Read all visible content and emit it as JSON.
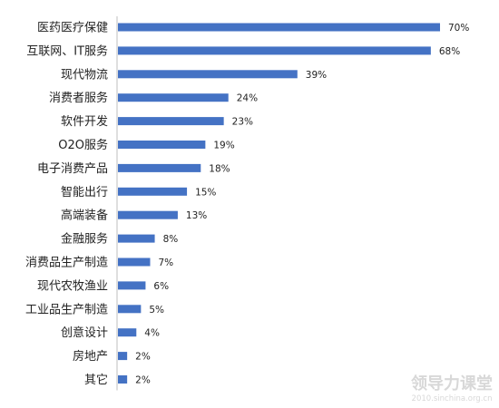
{
  "chart_data": {
    "type": "bar",
    "orientation": "horizontal",
    "categories": [
      "医药医疗保健",
      "互联网、IT服务",
      "现代物流",
      "消费者服务",
      "软件开发",
      "O2O服务",
      "电子消费产品",
      "智能出行",
      "高端装备",
      "金融服务",
      "消费品生产制造",
      "现代农牧渔业",
      "工业品生产制造",
      "创意设计",
      "房地产",
      "其它"
    ],
    "values": [
      70,
      68,
      39,
      24,
      23,
      19,
      18,
      15,
      13,
      8,
      7,
      6,
      5,
      4,
      2,
      2
    ],
    "value_labels": [
      "70%",
      "68%",
      "39%",
      "24%",
      "23%",
      "19%",
      "18%",
      "15%",
      "13%",
      "8%",
      "7%",
      "6%",
      "5%",
      "4%",
      "2%",
      "2%"
    ],
    "unit": "%",
    "xlim": [
      0,
      80
    ],
    "grid": false,
    "bar_color": "#4472C4"
  },
  "watermark": {
    "title": "领导力课堂",
    "url": "2010.sinchina.org.cn"
  }
}
